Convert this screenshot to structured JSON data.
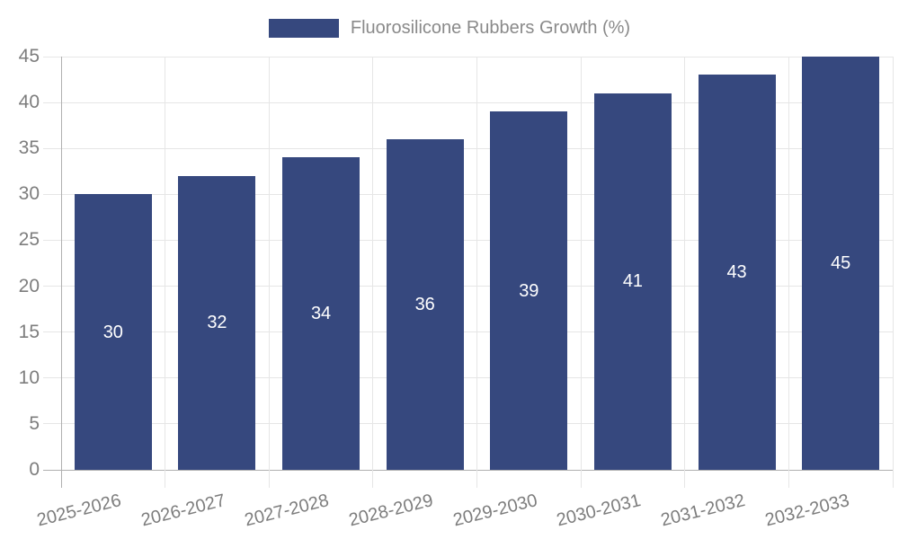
{
  "legend": {
    "label": "Fluorosilicone Rubbers Growth (%)"
  },
  "chart_data": {
    "type": "bar",
    "title": "",
    "categories": [
      "2025-2026",
      "2026-2027",
      "2027-2028",
      "2028-2029",
      "2029-2030",
      "2030-2031",
      "2031-2032",
      "2032-2033"
    ],
    "values": [
      30,
      32,
      34,
      36,
      39,
      41,
      43,
      45
    ],
    "series_name": "Fluorosilicone Rubbers Growth (%)",
    "xlabel": "",
    "ylabel": "",
    "ylim": [
      0,
      45
    ],
    "ytick_step": 5,
    "ytick_labels": [
      "0",
      "5",
      "10",
      "15",
      "20",
      "25",
      "30",
      "35",
      "40",
      "45"
    ],
    "grid": true,
    "legend_position": "top",
    "value_labels": "inside-center",
    "colors": {
      "bar": "#36487e",
      "grid": "#e6e6e6",
      "axis": "#b0b0b0",
      "tick_text": "#7d7d7d",
      "legend_text": "#8a8a8a",
      "value_label": "#ffffff"
    }
  }
}
